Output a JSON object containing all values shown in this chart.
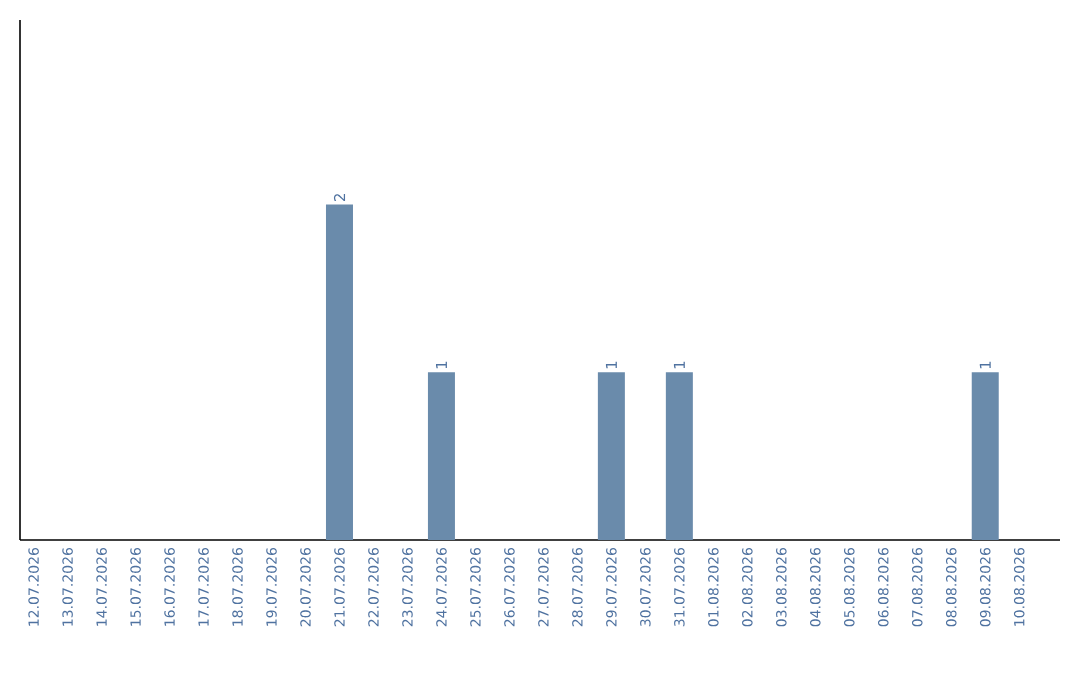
{
  "chart_data": {
    "type": "bar",
    "categories": [
      "12.07.2026",
      "13.07.2026",
      "14.07.2026",
      "15.07.2026",
      "16.07.2026",
      "17.07.2026",
      "18.07.2026",
      "19.07.2026",
      "20.07.2026",
      "21.07.2026",
      "22.07.2026",
      "23.07.2026",
      "24.07.2026",
      "25.07.2026",
      "26.07.2026",
      "27.07.2026",
      "28.07.2026",
      "29.07.2026",
      "30.07.2026",
      "31.07.2026",
      "01.08.2026",
      "02.08.2026",
      "03.08.2026",
      "04.08.2026",
      "05.08.2026",
      "06.08.2026",
      "07.08.2026",
      "08.08.2026",
      "09.08.2026",
      "10.08.2026"
    ],
    "values": [
      0,
      0,
      0,
      0,
      0,
      0,
      0,
      0,
      0,
      2,
      0,
      0,
      1,
      0,
      0,
      0,
      0,
      1,
      0,
      1,
      0,
      0,
      0,
      0,
      0,
      0,
      0,
      0,
      1,
      0
    ],
    "value_labels": [
      null,
      null,
      null,
      null,
      null,
      null,
      null,
      null,
      null,
      "2",
      null,
      null,
      "1",
      null,
      null,
      null,
      null,
      "1",
      null,
      "1",
      null,
      null,
      null,
      null,
      null,
      null,
      null,
      null,
      "1",
      null
    ],
    "color": "#6a8bab",
    "ylim": [
      0,
      3.1
    ],
    "tick_labels": "x"
  }
}
